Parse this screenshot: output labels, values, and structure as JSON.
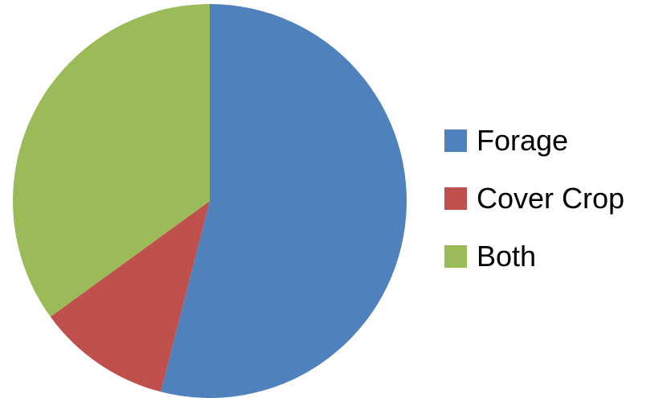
{
  "chart_data": {
    "type": "pie",
    "title": "",
    "categories": [
      "Forage",
      "Cover Crop",
      "Both"
    ],
    "values": [
      54,
      11,
      35
    ],
    "start_angle_deg": 0,
    "direction": "clockwise",
    "colors": [
      "#4F81BD",
      "#C0504D",
      "#9BBB59"
    ],
    "legend": {
      "position": "right",
      "entries": [
        {
          "label": "Forage",
          "color": "#4F81BD"
        },
        {
          "label": "Cover Crop",
          "color": "#C0504D"
        },
        {
          "label": "Both",
          "color": "#9BBB59"
        }
      ]
    }
  }
}
